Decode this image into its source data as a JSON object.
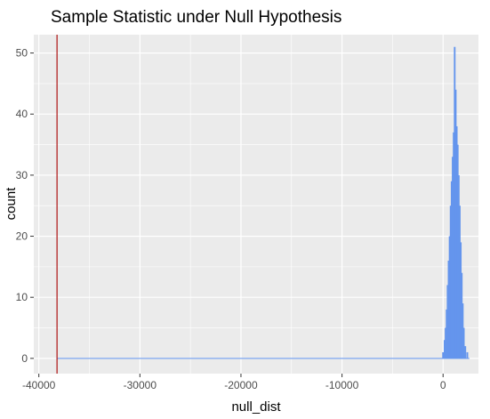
{
  "chart_data": {
    "type": "histogram",
    "title": "Sample Statistic under Null Hypothesis",
    "xlabel": "null_dist",
    "ylabel": "count",
    "xlim": [
      -40500,
      3500
    ],
    "ylim": [
      -2.5,
      53
    ],
    "x_ticks": [
      -40000,
      -30000,
      -20000,
      -10000,
      0
    ],
    "x_tick_labels": [
      "-40000",
      "-30000",
      "-20000",
      "-10000",
      "0"
    ],
    "y_ticks": [
      0,
      10,
      20,
      30,
      40,
      50
    ],
    "y_tick_labels": [
      "0",
      "10",
      "20",
      "30",
      "40",
      "50"
    ],
    "grid": true,
    "legend": "none",
    "colors": {
      "panel_background": "#ebebeb",
      "grid_major": "#ffffff",
      "bars": "#6495ed",
      "reference_line": "#b22222"
    },
    "reference_line": {
      "x": -38200
    },
    "baseline": {
      "x_start": -38200,
      "x_end": 2600,
      "y": 0
    },
    "bins": [
      {
        "x": 0,
        "count": 1
      },
      {
        "x": 150,
        "count": 3
      },
      {
        "x": 250,
        "count": 5
      },
      {
        "x": 350,
        "count": 8
      },
      {
        "x": 450,
        "count": 12
      },
      {
        "x": 550,
        "count": 16
      },
      {
        "x": 650,
        "count": 20
      },
      {
        "x": 750,
        "count": 25
      },
      {
        "x": 850,
        "count": 29
      },
      {
        "x": 950,
        "count": 33
      },
      {
        "x": 1050,
        "count": 37
      },
      {
        "x": 1150,
        "count": 51
      },
      {
        "x": 1250,
        "count": 44
      },
      {
        "x": 1350,
        "count": 38
      },
      {
        "x": 1450,
        "count": 35
      },
      {
        "x": 1550,
        "count": 30
      },
      {
        "x": 1650,
        "count": 25
      },
      {
        "x": 1750,
        "count": 19
      },
      {
        "x": 1850,
        "count": 14
      },
      {
        "x": 1950,
        "count": 9
      },
      {
        "x": 2050,
        "count": 5
      },
      {
        "x": 2200,
        "count": 2
      },
      {
        "x": 2400,
        "count": 1
      }
    ]
  }
}
